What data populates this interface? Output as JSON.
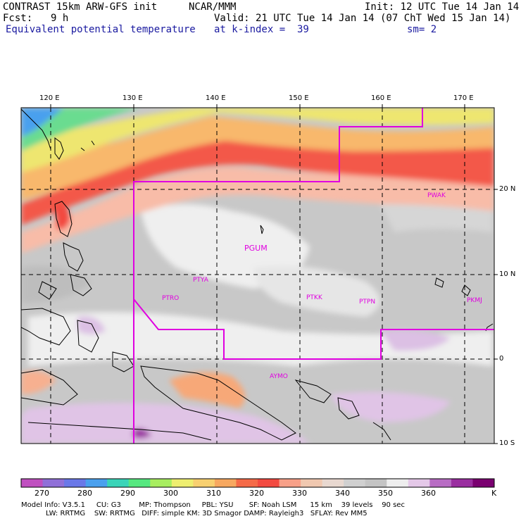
{
  "header": {
    "title_left": "CONTRAST 15km ARW-GFS init",
    "org": "NCAR/MMM",
    "init": "Init: 12 UTC Tue 14 Jan 14",
    "fcst_label": "Fcst:",
    "fcst_value": "9 h",
    "valid": "Valid: 21 UTC Tue 14 Jan 14 (07 ChT Wed 15 Jan 14)",
    "field": "Equivalent potential temperature",
    "level": "at k-index =  39",
    "smooth": "sm= 2"
  },
  "map": {
    "lon_labels": [
      "120 E",
      "130 E",
      "140 E",
      "150 E",
      "160 E",
      "170 E"
    ],
    "lat_labels": [
      "20 N",
      "10 N",
      "0",
      "10 S"
    ],
    "stations": [
      "PWAK",
      "PGUM",
      "PTYA",
      "PTRO",
      "PTKK",
      "PTPN",
      "PKMJ",
      "AYMO"
    ],
    "colors": {
      "boundary": "#e000e0",
      "station": "#e000e0"
    }
  },
  "colorbar": {
    "labels": [
      "270",
      "280",
      "290",
      "300",
      "310",
      "320",
      "330",
      "340",
      "350",
      "360"
    ],
    "unit": "K",
    "colors": [
      "#c050c0",
      "#9070d8",
      "#6a78e8",
      "#4aa0ee",
      "#3ad4b8",
      "#56e880",
      "#a8ee60",
      "#eeee70",
      "#f8d070",
      "#f7a860",
      "#f56a48",
      "#f34a40",
      "#f8a088",
      "#f0c8b0",
      "#e8d8d0",
      "#d0d0d0",
      "#c4c4c4",
      "#eeeeee",
      "#e4c8e8",
      "#b86cc4",
      "#9a2ea0",
      "#7a0070"
    ]
  },
  "footer": {
    "line1": "Model Info: V3.5.1     CU: G3        MP: Thompson     PBL: YSU       SF: Noah LSM      15 km    39 levels    90 sec",
    "line2": "           LW: RRTMG    SW: RRTMG   DIFF: simple KM: 3D Smagor DAMP: Rayleigh3   SFLAY: Rev MM5"
  }
}
